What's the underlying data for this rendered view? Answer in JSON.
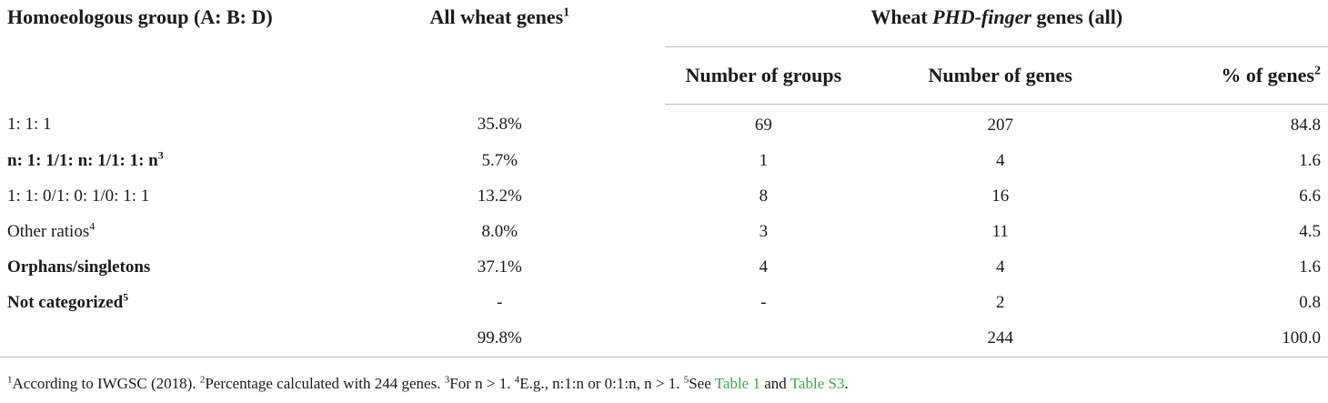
{
  "header": {
    "col0": "Homoeologous group (A: B: D)",
    "col1": "All wheat genes",
    "col1_sup": "1",
    "group_pre": "Wheat ",
    "group_italic": "PHD-finger",
    "group_post": " genes (all)",
    "sub_groups": "Number of groups",
    "sub_genes": "Number of genes",
    "sub_pct": "% of genes",
    "sub_pct_sup": "2"
  },
  "rows": [
    {
      "label": "1: 1: 1",
      "sup": "",
      "bold": false,
      "all": "35.8%",
      "groups": "69",
      "genes": "207",
      "pct": "84.8"
    },
    {
      "label": "n: 1: 1/1: n: 1/1: 1: n",
      "sup": "3",
      "bold": true,
      "all": "5.7%",
      "groups": "1",
      "genes": "4",
      "pct": "1.6"
    },
    {
      "label": "1: 1: 0/1: 0: 1/0: 1: 1",
      "sup": "",
      "bold": false,
      "all": "13.2%",
      "groups": "8",
      "genes": "16",
      "pct": "6.6"
    },
    {
      "label": "Other ratios",
      "sup": "4",
      "bold": false,
      "all": "8.0%",
      "groups": "3",
      "genes": "11",
      "pct": "4.5"
    },
    {
      "label": "Orphans/singletons",
      "sup": "",
      "bold": true,
      "all": "37.1%",
      "groups": "4",
      "genes": "4",
      "pct": "1.6"
    },
    {
      "label": "Not categorized",
      "sup": "5",
      "bold": true,
      "all": "-",
      "groups": "-",
      "genes": "2",
      "pct": "0.8"
    },
    {
      "label": "",
      "sup": "",
      "bold": false,
      "all": "99.8%",
      "groups": "",
      "genes": "244",
      "pct": "100.0"
    }
  ],
  "footnote": {
    "s1": "1",
    "t1": "According to IWGSC (2018). ",
    "s2": "2",
    "t2": "Percentage calculated with 244 genes. ",
    "s3": "3",
    "t3": "For n > 1. ",
    "s4": "4",
    "t4": "E.g., n:1:n or 0:1:n, n > 1. ",
    "s5": "5",
    "t5": "See ",
    "link1": "Table 1",
    "and": " and ",
    "link2": "Table S3",
    "end": "."
  },
  "colors": {
    "link": "#3aa845",
    "rule": "#bbbbbb",
    "text": "#1a1a1a"
  }
}
